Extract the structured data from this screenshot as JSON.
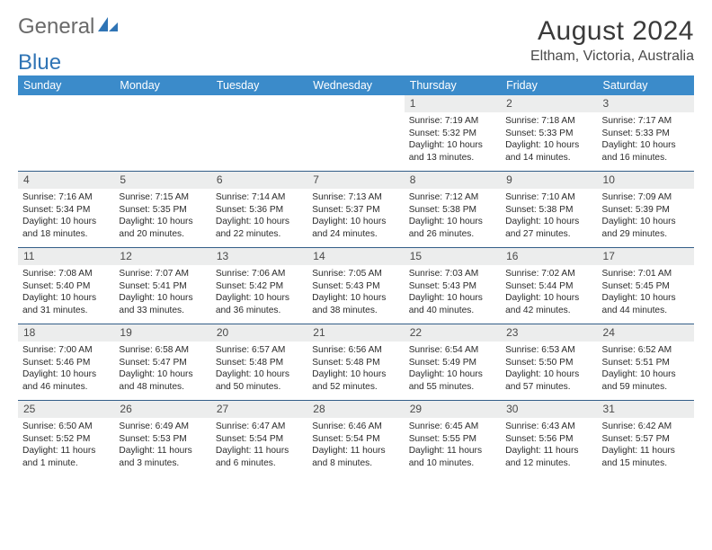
{
  "brand": {
    "part1": "General",
    "part2": "Blue",
    "accent_color": "#2f74b5"
  },
  "title": "August 2024",
  "location": "Eltham, Victoria, Australia",
  "header_bg": "#3b8bca",
  "header_fg": "#ffffff",
  "daynum_bg": "#eceded",
  "week_border": "#335e88",
  "weekdays": [
    "Sunday",
    "Monday",
    "Tuesday",
    "Wednesday",
    "Thursday",
    "Friday",
    "Saturday"
  ],
  "weeks": [
    [
      {
        "n": "",
        "sr": "",
        "ss": "",
        "dl": ""
      },
      {
        "n": "",
        "sr": "",
        "ss": "",
        "dl": ""
      },
      {
        "n": "",
        "sr": "",
        "ss": "",
        "dl": ""
      },
      {
        "n": "",
        "sr": "",
        "ss": "",
        "dl": ""
      },
      {
        "n": "1",
        "sr": "Sunrise: 7:19 AM",
        "ss": "Sunset: 5:32 PM",
        "dl": "Daylight: 10 hours and 13 minutes."
      },
      {
        "n": "2",
        "sr": "Sunrise: 7:18 AM",
        "ss": "Sunset: 5:33 PM",
        "dl": "Daylight: 10 hours and 14 minutes."
      },
      {
        "n": "3",
        "sr": "Sunrise: 7:17 AM",
        "ss": "Sunset: 5:33 PM",
        "dl": "Daylight: 10 hours and 16 minutes."
      }
    ],
    [
      {
        "n": "4",
        "sr": "Sunrise: 7:16 AM",
        "ss": "Sunset: 5:34 PM",
        "dl": "Daylight: 10 hours and 18 minutes."
      },
      {
        "n": "5",
        "sr": "Sunrise: 7:15 AM",
        "ss": "Sunset: 5:35 PM",
        "dl": "Daylight: 10 hours and 20 minutes."
      },
      {
        "n": "6",
        "sr": "Sunrise: 7:14 AM",
        "ss": "Sunset: 5:36 PM",
        "dl": "Daylight: 10 hours and 22 minutes."
      },
      {
        "n": "7",
        "sr": "Sunrise: 7:13 AM",
        "ss": "Sunset: 5:37 PM",
        "dl": "Daylight: 10 hours and 24 minutes."
      },
      {
        "n": "8",
        "sr": "Sunrise: 7:12 AM",
        "ss": "Sunset: 5:38 PM",
        "dl": "Daylight: 10 hours and 26 minutes."
      },
      {
        "n": "9",
        "sr": "Sunrise: 7:10 AM",
        "ss": "Sunset: 5:38 PM",
        "dl": "Daylight: 10 hours and 27 minutes."
      },
      {
        "n": "10",
        "sr": "Sunrise: 7:09 AM",
        "ss": "Sunset: 5:39 PM",
        "dl": "Daylight: 10 hours and 29 minutes."
      }
    ],
    [
      {
        "n": "11",
        "sr": "Sunrise: 7:08 AM",
        "ss": "Sunset: 5:40 PM",
        "dl": "Daylight: 10 hours and 31 minutes."
      },
      {
        "n": "12",
        "sr": "Sunrise: 7:07 AM",
        "ss": "Sunset: 5:41 PM",
        "dl": "Daylight: 10 hours and 33 minutes."
      },
      {
        "n": "13",
        "sr": "Sunrise: 7:06 AM",
        "ss": "Sunset: 5:42 PM",
        "dl": "Daylight: 10 hours and 36 minutes."
      },
      {
        "n": "14",
        "sr": "Sunrise: 7:05 AM",
        "ss": "Sunset: 5:43 PM",
        "dl": "Daylight: 10 hours and 38 minutes."
      },
      {
        "n": "15",
        "sr": "Sunrise: 7:03 AM",
        "ss": "Sunset: 5:43 PM",
        "dl": "Daylight: 10 hours and 40 minutes."
      },
      {
        "n": "16",
        "sr": "Sunrise: 7:02 AM",
        "ss": "Sunset: 5:44 PM",
        "dl": "Daylight: 10 hours and 42 minutes."
      },
      {
        "n": "17",
        "sr": "Sunrise: 7:01 AM",
        "ss": "Sunset: 5:45 PM",
        "dl": "Daylight: 10 hours and 44 minutes."
      }
    ],
    [
      {
        "n": "18",
        "sr": "Sunrise: 7:00 AM",
        "ss": "Sunset: 5:46 PM",
        "dl": "Daylight: 10 hours and 46 minutes."
      },
      {
        "n": "19",
        "sr": "Sunrise: 6:58 AM",
        "ss": "Sunset: 5:47 PM",
        "dl": "Daylight: 10 hours and 48 minutes."
      },
      {
        "n": "20",
        "sr": "Sunrise: 6:57 AM",
        "ss": "Sunset: 5:48 PM",
        "dl": "Daylight: 10 hours and 50 minutes."
      },
      {
        "n": "21",
        "sr": "Sunrise: 6:56 AM",
        "ss": "Sunset: 5:48 PM",
        "dl": "Daylight: 10 hours and 52 minutes."
      },
      {
        "n": "22",
        "sr": "Sunrise: 6:54 AM",
        "ss": "Sunset: 5:49 PM",
        "dl": "Daylight: 10 hours and 55 minutes."
      },
      {
        "n": "23",
        "sr": "Sunrise: 6:53 AM",
        "ss": "Sunset: 5:50 PM",
        "dl": "Daylight: 10 hours and 57 minutes."
      },
      {
        "n": "24",
        "sr": "Sunrise: 6:52 AM",
        "ss": "Sunset: 5:51 PM",
        "dl": "Daylight: 10 hours and 59 minutes."
      }
    ],
    [
      {
        "n": "25",
        "sr": "Sunrise: 6:50 AM",
        "ss": "Sunset: 5:52 PM",
        "dl": "Daylight: 11 hours and 1 minute."
      },
      {
        "n": "26",
        "sr": "Sunrise: 6:49 AM",
        "ss": "Sunset: 5:53 PM",
        "dl": "Daylight: 11 hours and 3 minutes."
      },
      {
        "n": "27",
        "sr": "Sunrise: 6:47 AM",
        "ss": "Sunset: 5:54 PM",
        "dl": "Daylight: 11 hours and 6 minutes."
      },
      {
        "n": "28",
        "sr": "Sunrise: 6:46 AM",
        "ss": "Sunset: 5:54 PM",
        "dl": "Daylight: 11 hours and 8 minutes."
      },
      {
        "n": "29",
        "sr": "Sunrise: 6:45 AM",
        "ss": "Sunset: 5:55 PM",
        "dl": "Daylight: 11 hours and 10 minutes."
      },
      {
        "n": "30",
        "sr": "Sunrise: 6:43 AM",
        "ss": "Sunset: 5:56 PM",
        "dl": "Daylight: 11 hours and 12 minutes."
      },
      {
        "n": "31",
        "sr": "Sunrise: 6:42 AM",
        "ss": "Sunset: 5:57 PM",
        "dl": "Daylight: 11 hours and 15 minutes."
      }
    ]
  ]
}
